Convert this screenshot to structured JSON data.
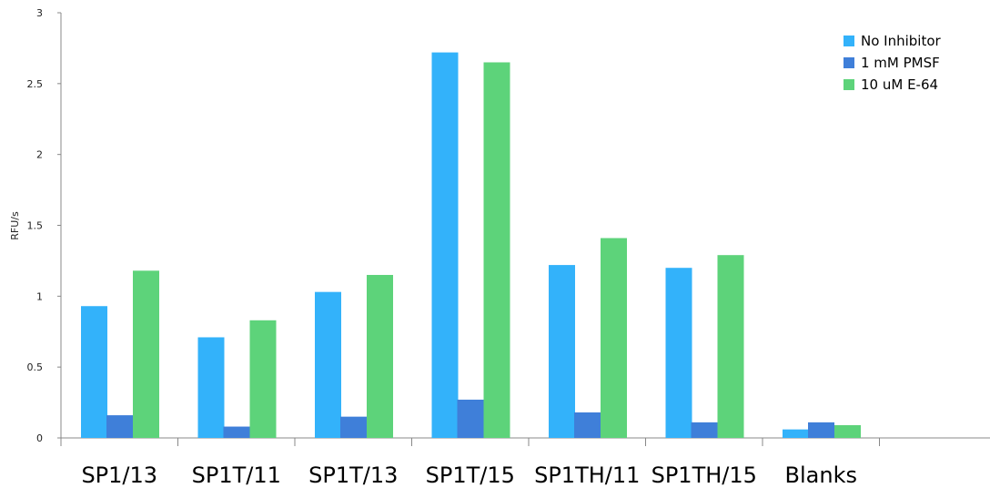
{
  "chart_data": {
    "type": "bar",
    "title": "",
    "xlabel": "",
    "ylabel": "RFU/s",
    "ylim": [
      0,
      3
    ],
    "yticks": [
      "0",
      "0.5",
      "1",
      "1.5",
      "2",
      "2.5",
      "3"
    ],
    "grid": false,
    "legend_position": "top-right",
    "categories": [
      "SP1/13",
      "SP1T/11",
      "SP1T/13",
      "SP1T/15",
      "SP1TH/11",
      "SP1TH/15",
      "Blanks",
      ""
    ],
    "series": [
      {
        "name": "No Inhibitor",
        "color": "#33b2fa",
        "values": [
          0.93,
          0.71,
          1.03,
          2.72,
          1.22,
          1.2,
          0.06,
          null
        ]
      },
      {
        "name": "1 mM PMSF",
        "color": "#3f7fd9",
        "values": [
          0.16,
          0.08,
          0.15,
          0.27,
          0.18,
          0.11,
          0.11,
          null
        ]
      },
      {
        "name": "10 uM E-64",
        "color": "#5dd37a",
        "values": [
          1.18,
          0.83,
          1.15,
          2.65,
          1.41,
          1.29,
          0.09,
          null
        ]
      }
    ]
  }
}
